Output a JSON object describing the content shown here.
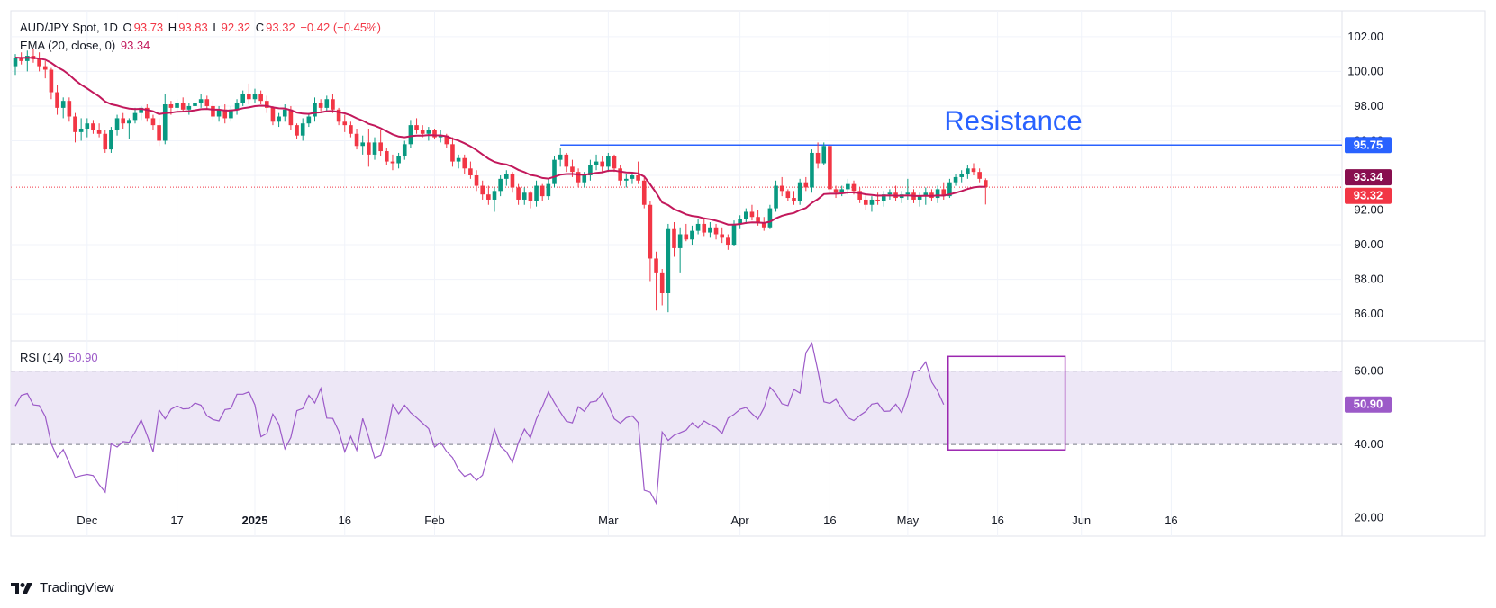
{
  "header": {
    "symbol": "AUD/JPY Spot, 1D",
    "o_label": "O",
    "o_value": "93.73",
    "h_label": "H",
    "h_value": "93.83",
    "l_label": "L",
    "l_value": "92.32",
    "c_label": "C",
    "c_value": "93.32",
    "change": "−0.42 (−0.45%)",
    "ema_label": "EMA (20, close, 0)",
    "ema_value": "93.34",
    "rsi_label": "RSI (14)",
    "rsi_value": "50.90"
  },
  "brand": {
    "name": "TradingView"
  },
  "colors": {
    "up": "#089981",
    "down": "#f23645",
    "ema": "#c2185b",
    "rsi": "#9c5ac8",
    "resistance": "#2962ff",
    "band": "#ede7f6",
    "box": "#9c27b0"
  },
  "chart_data": [
    {
      "type": "candlestick",
      "title": "AUD/JPY Spot, 1D",
      "ylim": [
        84.5,
        103.5
      ],
      "yticks": [
        "102.00",
        "100.00",
        "98.00",
        "96.00",
        "94.00",
        "92.00",
        "90.00",
        "88.00",
        "86.00"
      ],
      "ytick_values": [
        102,
        100,
        98,
        96,
        94,
        92,
        90,
        88,
        86
      ],
      "xticks": [
        "Dec",
        "17",
        "2025",
        "16",
        "Feb",
        "Mar",
        "Apr",
        "16",
        "May",
        "16",
        "Jun",
        "16"
      ],
      "xtick_index": [
        12,
        27,
        40,
        55,
        70,
        99,
        121,
        136,
        149,
        164,
        178,
        193
      ],
      "candles": [
        [
          100.3,
          101.0,
          99.8,
          100.8
        ],
        [
          100.8,
          101.1,
          100.4,
          100.6
        ],
        [
          100.6,
          101.2,
          100.0,
          100.9
        ],
        [
          100.9,
          101.3,
          100.5,
          100.7
        ],
        [
          100.7,
          101.1,
          100.0,
          100.3
        ],
        [
          100.3,
          100.6,
          99.6,
          100.1
        ],
        [
          100.1,
          100.2,
          98.4,
          98.8
        ],
        [
          98.8,
          99.2,
          97.5,
          97.9
        ],
        [
          97.9,
          98.5,
          97.3,
          98.3
        ],
        [
          98.3,
          98.5,
          97.1,
          97.4
        ],
        [
          97.4,
          97.6,
          95.9,
          96.5
        ],
        [
          96.5,
          97.3,
          96.0,
          96.7
        ],
        [
          96.7,
          97.3,
          96.2,
          97.0
        ],
        [
          97.0,
          97.2,
          96.4,
          96.6
        ],
        [
          96.6,
          97.0,
          96.2,
          96.4
        ],
        [
          96.4,
          96.6,
          95.3,
          95.5
        ],
        [
          95.5,
          96.8,
          95.3,
          96.6
        ],
        [
          96.6,
          97.5,
          96.3,
          97.3
        ],
        [
          97.3,
          97.6,
          96.7,
          97.0
        ],
        [
          97.0,
          97.3,
          96.1,
          97.2
        ],
        [
          97.2,
          97.9,
          97.0,
          97.6
        ],
        [
          97.6,
          98.0,
          97.2,
          97.9
        ],
        [
          97.9,
          98.1,
          97.1,
          97.3
        ],
        [
          97.3,
          97.5,
          96.6,
          96.9
        ],
        [
          96.9,
          97.3,
          95.7,
          96.0
        ],
        [
          96.0,
          98.7,
          95.8,
          98.1
        ],
        [
          98.1,
          98.3,
          97.5,
          97.9
        ],
        [
          97.9,
          98.4,
          97.6,
          98.2
        ],
        [
          98.2,
          98.5,
          97.7,
          97.8
        ],
        [
          97.8,
          98.2,
          97.5,
          98.0
        ],
        [
          98.0,
          98.5,
          97.7,
          98.2
        ],
        [
          98.2,
          98.7,
          97.9,
          98.4
        ],
        [
          98.4,
          98.6,
          97.8,
          98.0
        ],
        [
          98.0,
          98.3,
          97.2,
          97.4
        ],
        [
          97.4,
          98.0,
          97.1,
          97.8
        ],
        [
          97.8,
          98.1,
          97.0,
          97.3
        ],
        [
          97.3,
          98.0,
          97.1,
          97.8
        ],
        [
          97.8,
          98.4,
          97.5,
          98.2
        ],
        [
          98.2,
          98.9,
          98.0,
          98.7
        ],
        [
          98.7,
          99.3,
          98.1,
          98.4
        ],
        [
          98.4,
          99.0,
          98.2,
          98.7
        ],
        [
          98.7,
          98.9,
          98.1,
          98.3
        ],
        [
          98.3,
          98.6,
          97.6,
          97.9
        ],
        [
          97.9,
          98.0,
          96.9,
          97.1
        ],
        [
          97.1,
          97.6,
          96.8,
          97.4
        ],
        [
          97.4,
          98.1,
          97.1,
          97.8
        ],
        [
          97.8,
          98.0,
          96.6,
          96.9
        ],
        [
          96.9,
          97.0,
          96.1,
          96.3
        ],
        [
          96.3,
          97.3,
          96.0,
          97.0
        ],
        [
          97.0,
          97.6,
          96.8,
          97.4
        ],
        [
          97.4,
          98.5,
          97.1,
          98.2
        ],
        [
          98.2,
          98.4,
          97.7,
          97.9
        ],
        [
          97.9,
          98.6,
          97.7,
          98.4
        ],
        [
          98.4,
          98.7,
          97.6,
          97.8
        ],
        [
          97.8,
          97.9,
          96.9,
          97.1
        ],
        [
          97.1,
          97.5,
          96.5,
          96.9
        ],
        [
          96.9,
          97.1,
          96.2,
          96.4
        ],
        [
          96.4,
          96.7,
          95.5,
          95.7
        ],
        [
          95.7,
          96.3,
          95.2,
          95.9
        ],
        [
          95.9,
          96.7,
          94.5,
          95.2
        ],
        [
          95.2,
          96.2,
          94.9,
          95.9
        ],
        [
          95.9,
          96.6,
          95.1,
          95.4
        ],
        [
          95.4,
          95.6,
          94.6,
          94.8
        ],
        [
          94.8,
          95.2,
          94.3,
          94.7
        ],
        [
          94.7,
          95.3,
          94.4,
          95.1
        ],
        [
          95.1,
          96.0,
          94.9,
          95.8
        ],
        [
          95.8,
          97.2,
          95.6,
          96.9
        ],
        [
          96.9,
          97.3,
          96.4,
          96.6
        ],
        [
          96.6,
          96.9,
          96.2,
          96.4
        ],
        [
          96.4,
          96.8,
          96.0,
          96.6
        ],
        [
          96.6,
          96.7,
          96.1,
          96.2
        ],
        [
          96.2,
          96.6,
          95.9,
          96.3
        ],
        [
          96.3,
          96.4,
          95.6,
          95.8
        ],
        [
          95.8,
          96.2,
          94.5,
          94.8
        ],
        [
          94.8,
          95.2,
          94.4,
          95.0
        ],
        [
          95.0,
          95.2,
          94.1,
          94.4
        ],
        [
          94.4,
          94.8,
          93.8,
          94.0
        ],
        [
          94.0,
          94.3,
          93.1,
          93.4
        ],
        [
          93.4,
          93.7,
          92.6,
          92.9
        ],
        [
          92.9,
          93.4,
          92.3,
          92.6
        ],
        [
          92.6,
          93.3,
          91.9,
          93.1
        ],
        [
          93.1,
          94.0,
          92.8,
          93.8
        ],
        [
          93.8,
          94.3,
          93.4,
          94.1
        ],
        [
          94.1,
          94.2,
          93.0,
          93.3
        ],
        [
          93.3,
          93.5,
          92.3,
          92.6
        ],
        [
          92.6,
          93.3,
          92.3,
          93.0
        ],
        [
          93.0,
          93.1,
          92.1,
          92.5
        ],
        [
          92.5,
          93.7,
          92.2,
          93.4
        ],
        [
          93.4,
          93.5,
          92.5,
          92.8
        ],
        [
          92.8,
          93.8,
          92.6,
          93.5
        ],
        [
          93.5,
          95.1,
          93.3,
          94.9
        ],
        [
          94.9,
          95.6,
          94.5,
          95.2
        ],
        [
          95.2,
          95.3,
          94.2,
          94.5
        ],
        [
          94.5,
          94.9,
          93.9,
          94.2
        ],
        [
          94.2,
          94.4,
          93.3,
          93.6
        ],
        [
          93.6,
          94.2,
          93.3,
          94.0
        ],
        [
          94.0,
          94.9,
          93.7,
          94.6
        ],
        [
          94.6,
          95.2,
          94.3,
          94.8
        ],
        [
          94.8,
          95.1,
          94.2,
          94.5
        ],
        [
          94.5,
          95.3,
          94.2,
          95.1
        ],
        [
          95.1,
          95.2,
          94.2,
          94.4
        ],
        [
          94.4,
          94.6,
          93.4,
          93.7
        ],
        [
          93.7,
          94.1,
          93.3,
          93.8
        ],
        [
          93.8,
          94.2,
          93.5,
          94.0
        ],
        [
          94.0,
          94.8,
          93.5,
          93.7
        ],
        [
          93.7,
          93.9,
          92.1,
          92.3
        ],
        [
          92.3,
          92.5,
          87.9,
          89.2
        ],
        [
          89.2,
          89.6,
          86.2,
          88.4
        ],
        [
          88.4,
          88.6,
          86.5,
          87.2
        ],
        [
          87.2,
          91.2,
          86.1,
          90.9
        ],
        [
          90.9,
          91.3,
          89.3,
          89.8
        ],
        [
          89.8,
          91.0,
          88.4,
          90.6
        ],
        [
          90.6,
          91.2,
          90.2,
          90.3
        ],
        [
          90.3,
          91.1,
          90.0,
          90.8
        ],
        [
          90.8,
          91.5,
          90.6,
          91.2
        ],
        [
          91.2,
          91.5,
          90.5,
          90.7
        ],
        [
          90.7,
          91.3,
          90.4,
          91.0
        ],
        [
          91.0,
          91.2,
          90.3,
          90.6
        ],
        [
          90.6,
          91.0,
          90.1,
          90.4
        ],
        [
          90.4,
          90.6,
          89.7,
          90.0
        ],
        [
          90.0,
          91.4,
          89.9,
          91.2
        ],
        [
          91.2,
          91.7,
          90.9,
          91.5
        ],
        [
          91.5,
          92.1,
          91.2,
          91.9
        ],
        [
          91.9,
          92.3,
          91.4,
          91.6
        ],
        [
          91.6,
          92.0,
          91.1,
          91.3
        ],
        [
          91.3,
          91.6,
          90.8,
          91.0
        ],
        [
          91.0,
          92.3,
          90.9,
          92.1
        ],
        [
          92.1,
          93.7,
          91.9,
          93.4
        ],
        [
          93.4,
          93.9,
          92.8,
          93.1
        ],
        [
          93.1,
          93.2,
          92.5,
          92.7
        ],
        [
          92.7,
          93.1,
          92.3,
          92.5
        ],
        [
          92.5,
          93.8,
          92.3,
          93.6
        ],
        [
          93.6,
          93.9,
          93.1,
          93.3
        ],
        [
          93.3,
          95.5,
          93.0,
          95.3
        ],
        [
          95.3,
          95.9,
          94.4,
          94.7
        ],
        [
          94.7,
          95.9,
          94.6,
          95.7
        ],
        [
          95.7,
          95.8,
          93.0,
          93.2
        ],
        [
          93.2,
          93.4,
          92.7,
          93.0
        ],
        [
          93.0,
          93.4,
          92.8,
          93.2
        ],
        [
          93.2,
          93.8,
          92.9,
          93.5
        ],
        [
          93.5,
          93.7,
          92.9,
          93.1
        ],
        [
          93.1,
          93.3,
          92.4,
          92.6
        ],
        [
          92.6,
          92.9,
          92.0,
          92.3
        ],
        [
          92.3,
          92.8,
          91.9,
          92.6
        ],
        [
          92.6,
          93.0,
          92.3,
          92.5
        ],
        [
          92.5,
          93.1,
          92.2,
          92.9
        ],
        [
          92.9,
          93.2,
          92.6,
          93.0
        ],
        [
          93.0,
          93.4,
          92.5,
          92.7
        ],
        [
          92.7,
          93.1,
          92.4,
          92.9
        ],
        [
          92.9,
          93.8,
          92.6,
          93.0
        ],
        [
          93.0,
          93.2,
          92.4,
          92.6
        ],
        [
          92.6,
          93.0,
          92.2,
          92.8
        ],
        [
          92.8,
          93.3,
          92.3,
          93.0
        ],
        [
          93.0,
          93.2,
          92.5,
          92.7
        ],
        [
          92.7,
          93.4,
          92.4,
          93.2
        ],
        [
          93.2,
          93.6,
          92.6,
          92.8
        ],
        [
          92.8,
          93.8,
          92.7,
          93.6
        ],
        [
          93.6,
          94.1,
          93.4,
          93.9
        ],
        [
          93.9,
          94.3,
          93.6,
          94.1
        ],
        [
          94.1,
          94.6,
          93.8,
          94.4
        ],
        [
          94.4,
          94.7,
          94.0,
          94.2
        ],
        [
          94.2,
          94.4,
          93.6,
          93.8
        ],
        [
          93.73,
          93.83,
          92.32,
          93.32
        ]
      ],
      "ema20_last": 93.34,
      "last_close": 93.32,
      "resistance": {
        "label": "Resistance",
        "value": 95.75,
        "value_label": "95.75",
        "start_index": 91
      },
      "price_labels": {
        "ema": "93.34",
        "close": "93.32"
      }
    },
    {
      "type": "line",
      "title": "RSI (14)",
      "ylim": [
        15,
        68
      ],
      "yticks": [
        "60.00",
        "40.00",
        "20.00"
      ],
      "ytick_values": [
        60,
        40,
        20
      ],
      "band": [
        40,
        60
      ],
      "current_label": "50.90",
      "highlight_box": {
        "from_index": 155,
        "to_index": 164,
        "y_low": 38.5,
        "y_high": 64
      },
      "values": [
        50.5,
        53.4,
        53.9,
        50.8,
        50.6,
        47.6,
        40.2,
        36.5,
        38.6,
        35.0,
        31.0,
        31.5,
        31.8,
        31.5,
        29.0,
        27.0,
        40.2,
        39.3,
        40.8,
        40.6,
        43.4,
        46.7,
        42.5,
        38.0,
        49.4,
        47.0,
        49.6,
        50.5,
        49.7,
        49.8,
        51.3,
        50.7,
        47.8,
        46.8,
        46.4,
        49.5,
        49.8,
        53.7,
        53.7,
        54.3,
        50.8,
        42.1,
        43.0,
        48.3,
        45.5,
        38.8,
        41.9,
        49.2,
        49.8,
        53.4,
        51.3,
        55.3,
        47.2,
        47.1,
        43.6,
        38.0,
        42.2,
        38.4,
        47.1,
        42.0,
        36.3,
        37.0,
        42.4,
        50.9,
        48.4,
        50.7,
        48.7,
        47.3,
        45.8,
        44.3,
        39.3,
        40.6,
        38.1,
        36.4,
        33.1,
        31.3,
        32.0,
        30.2,
        31.6,
        37.5,
        44.2,
        39.5,
        38.0,
        35.1,
        40.5,
        44.2,
        41.8,
        47.0,
        50.3,
        54.3,
        51.4,
        48.8,
        46.3,
        45.9,
        50.3,
        49.0,
        51.5,
        51.8,
        54.0,
        50.7,
        47.0,
        45.8,
        47.3,
        47.8,
        46.0,
        27.5,
        27.0,
        24.0,
        43.4,
        41.1,
        42.5,
        43.2,
        43.9,
        45.9,
        44.5,
        46.4,
        45.4,
        44.6,
        43.0,
        47.2,
        48.2,
        49.6,
        50.1,
        48.4,
        46.9,
        50.0,
        55.6,
        53.8,
        51.1,
        50.6,
        55.0,
        54.0,
        65.0,
        67.6,
        60.1,
        51.6,
        51.2,
        52.3,
        49.8,
        47.3,
        46.5,
        47.9,
        49.0,
        51.0,
        51.3,
        49.0,
        49.1,
        51.0,
        48.6,
        53.4,
        59.7,
        60.3,
        62.5,
        57.0,
        54.5,
        50.9
      ]
    }
  ]
}
